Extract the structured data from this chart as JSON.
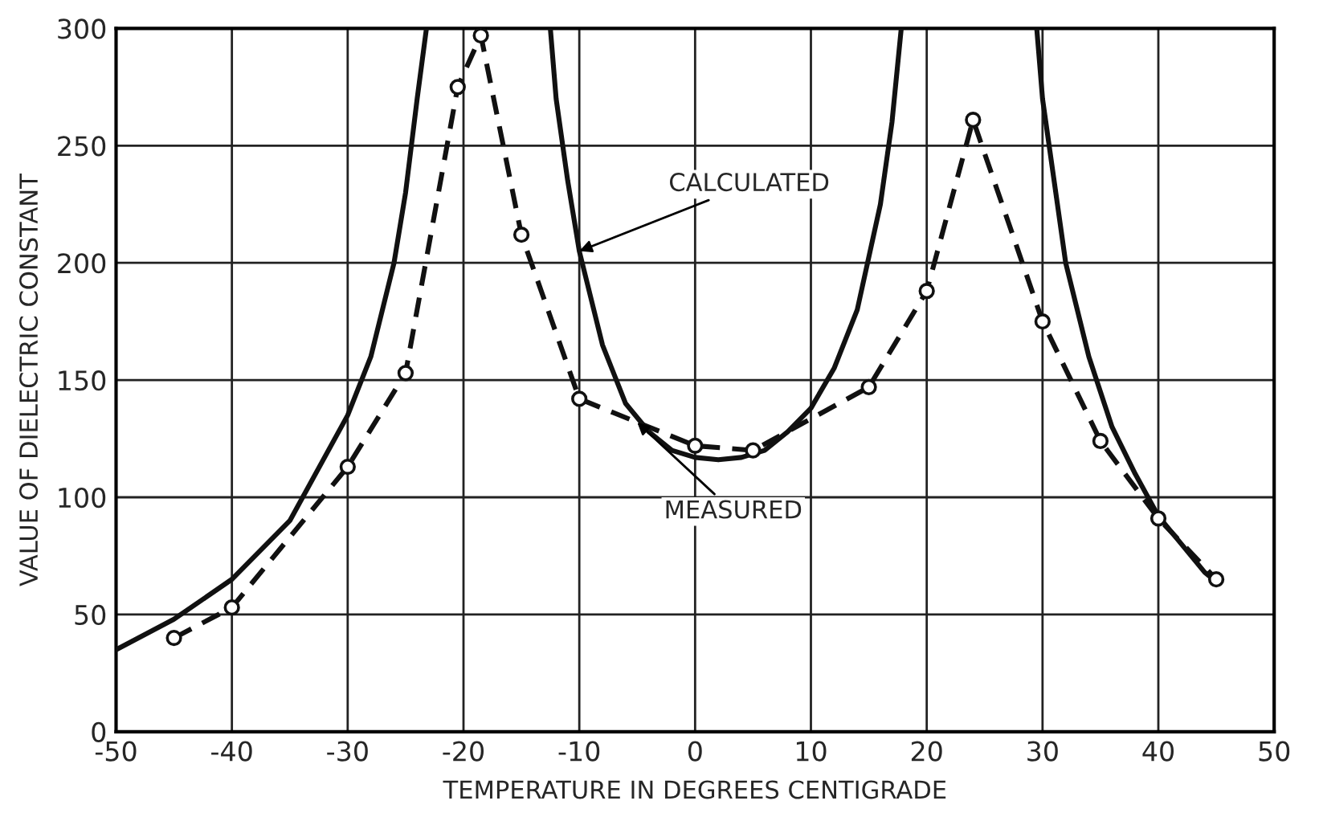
{
  "chart_data": {
    "type": "line",
    "xlabel": "TEMPERATURE IN DEGREES CENTIGRADE",
    "ylabel": "VALUE OF DIELECTRIC CONSTANT",
    "xlim": [
      -50,
      50
    ],
    "ylim": [
      0,
      300
    ],
    "xticks": [
      -50,
      -40,
      -30,
      -20,
      -10,
      0,
      10,
      20,
      30,
      40,
      50
    ],
    "yticks": [
      0,
      50,
      100,
      150,
      200,
      250,
      300
    ],
    "grid": true,
    "series": [
      {
        "color": "#111111",
        "line_style": "solid",
        "marker": "none",
        "x": [
          -50,
          -45,
          -40,
          -35,
          -30,
          -28,
          -26,
          -25,
          -24,
          -23.2,
          null,
          -12.5,
          -12,
          -11,
          -10,
          -8,
          -6,
          -4,
          -2,
          0,
          2,
          4,
          6,
          8,
          10,
          12,
          14,
          16,
          17,
          17.8,
          null,
          29.5,
          30,
          32,
          34,
          36,
          38,
          40,
          42,
          44,
          45
        ],
        "values": [
          35,
          48,
          65,
          90,
          135,
          160,
          200,
          230,
          270,
          300,
          null,
          300,
          270,
          235,
          205,
          165,
          140,
          128,
          120,
          117,
          116,
          117,
          120,
          128,
          138,
          155,
          180,
          225,
          260,
          300,
          null,
          300,
          270,
          200,
          160,
          130,
          110,
          92,
          80,
          68,
          64
        ]
      },
      {
        "color": "#111111",
        "line_style": "dashed",
        "marker": "circle",
        "x": [
          -45,
          -40,
          -30,
          -25,
          -20.5,
          -18.5,
          -15,
          -10,
          0,
          5,
          15,
          20,
          24,
          30,
          35,
          40,
          45
        ],
        "values": [
          40,
          53,
          113,
          153,
          275,
          297,
          212,
          142,
          122,
          120,
          147,
          188,
          261,
          175,
          124,
          91,
          65
        ]
      }
    ],
    "annotations": [
      {
        "text": "CALCULATED",
        "x": -10,
        "y": 205
      },
      {
        "text": "MEASURED",
        "x": -5,
        "y": 132
      }
    ]
  }
}
